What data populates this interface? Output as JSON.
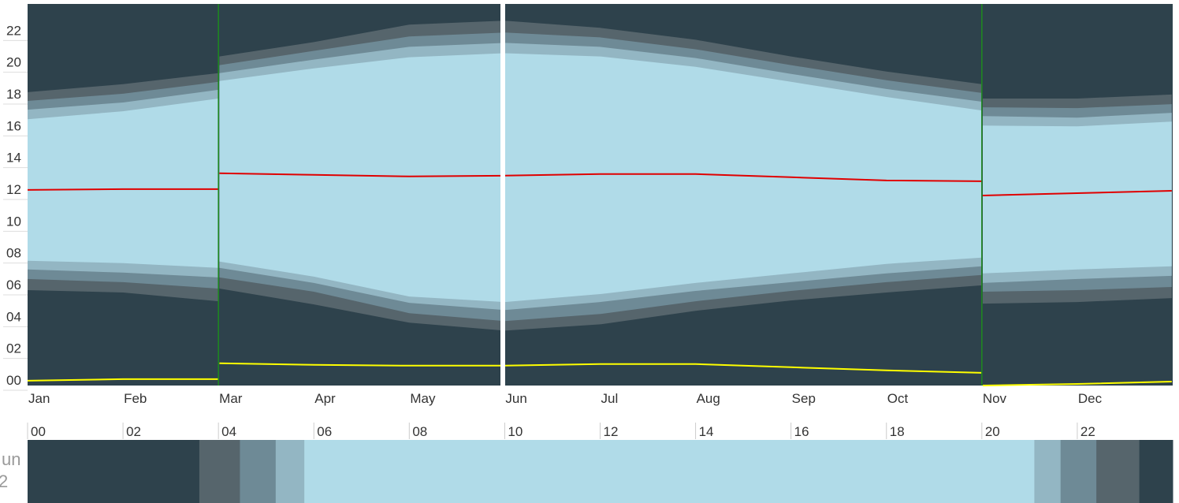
{
  "colors": {
    "night": "#2e424c",
    "astro": "#56656c",
    "nautical": "#6e8a96",
    "civil": "#93b6c3",
    "day": "#b0dbe8",
    "noon_line": "#e00000",
    "midnight_line": "#ffff00",
    "dst_line": "#1e8a1e",
    "axis_text": "#333333",
    "sidebar_text": "#9a9a9a",
    "gap": "#ffffff"
  },
  "chart_data": {
    "type": "area",
    "title": "",
    "xlabel": "",
    "ylabel": "",
    "ylim": [
      0,
      24
    ],
    "grid": false,
    "y_ticks": [
      "00",
      "02",
      "04",
      "06",
      "08",
      "10",
      "12",
      "14",
      "16",
      "18",
      "20",
      "22"
    ],
    "x_ticks": [
      {
        "label": "Jan",
        "month": 1
      },
      {
        "label": "Feb",
        "month": 2
      },
      {
        "label": "Mar",
        "month": 3
      },
      {
        "label": "Apr",
        "month": 4
      },
      {
        "label": "May",
        "month": 5
      },
      {
        "label": "Jun",
        "month": 6
      },
      {
        "label": "Jul",
        "month": 7
      },
      {
        "label": "Aug",
        "month": 8
      },
      {
        "label": "Sep",
        "month": 9
      },
      {
        "label": "Oct",
        "month": 10
      },
      {
        "label": "Nov",
        "month": 11
      },
      {
        "label": "Dec",
        "month": 12
      }
    ],
    "dst_transitions": [
      "Mar",
      "Nov"
    ],
    "selected_day": "Jun",
    "x_month": [
      1.0,
      2.0,
      3.0,
      3.01,
      4.0,
      5.0,
      6.0,
      7.0,
      8.0,
      9.0,
      10.0,
      11.0,
      11.01,
      12.0,
      12.99
    ],
    "series": [
      {
        "name": "astro_dawn",
        "values": [
          6.0,
          5.85,
          5.3,
          6.1,
          5.1,
          3.95,
          3.45,
          3.85,
          4.7,
          5.35,
          5.85,
          6.3,
          5.15,
          5.25,
          5.5
        ]
      },
      {
        "name": "nautical_dawn",
        "values": [
          6.7,
          6.5,
          6.1,
          6.8,
          5.9,
          4.55,
          4.05,
          4.5,
          5.3,
          5.95,
          6.5,
          6.95,
          5.9,
          6.0,
          6.2
        ]
      },
      {
        "name": "civil_dawn",
        "values": [
          7.3,
          7.1,
          6.8,
          7.4,
          6.45,
          5.2,
          4.75,
          5.25,
          5.95,
          6.5,
          7.05,
          7.5,
          6.45,
          6.7,
          6.9
        ]
      },
      {
        "name": "sunrise",
        "values": [
          7.85,
          7.7,
          7.4,
          7.8,
          6.85,
          5.6,
          5.25,
          5.75,
          6.45,
          7.05,
          7.65,
          8.05,
          7.05,
          7.3,
          7.5
        ]
      },
      {
        "name": "solar_noon",
        "values": [
          12.3,
          12.35,
          12.35,
          13.35,
          13.25,
          13.15,
          13.2,
          13.3,
          13.3,
          13.1,
          12.9,
          12.85,
          11.95,
          12.1,
          12.25
        ]
      },
      {
        "name": "sunset",
        "values": [
          16.75,
          17.25,
          18.05,
          19.15,
          19.95,
          20.65,
          20.9,
          20.7,
          20.05,
          19.1,
          18.15,
          17.3,
          16.35,
          16.3,
          16.6
        ]
      },
      {
        "name": "civil_dusk",
        "values": [
          17.35,
          17.8,
          18.6,
          19.65,
          20.5,
          21.3,
          21.55,
          21.3,
          20.6,
          19.6,
          18.65,
          17.85,
          16.95,
          16.85,
          17.15
        ]
      },
      {
        "name": "nautical_dusk",
        "values": [
          17.9,
          18.35,
          19.1,
          20.15,
          21.05,
          21.95,
          22.2,
          21.9,
          21.15,
          20.15,
          19.2,
          18.4,
          17.5,
          17.45,
          17.7
        ]
      },
      {
        "name": "astro_dusk",
        "values": [
          18.45,
          18.95,
          19.65,
          20.7,
          21.6,
          22.7,
          22.95,
          22.5,
          21.75,
          20.7,
          19.75,
          18.95,
          18.05,
          18.05,
          18.3
        ]
      },
      {
        "name": "solar_midnight",
        "values": [
          0.3,
          0.4,
          0.4,
          1.4,
          1.3,
          1.25,
          1.25,
          1.35,
          1.35,
          1.15,
          0.95,
          0.8,
          0.0,
          0.1,
          0.25
        ]
      }
    ]
  },
  "day_strip": {
    "tick_labels": [
      "00",
      "02",
      "04",
      "06",
      "08",
      "10",
      "12",
      "14",
      "16",
      "18",
      "20",
      "22"
    ],
    "bands": [
      {
        "from": 0.0,
        "to": 3.6,
        "color": "night"
      },
      {
        "from": 3.6,
        "to": 4.45,
        "color": "astro"
      },
      {
        "from": 4.45,
        "to": 5.2,
        "color": "nautical"
      },
      {
        "from": 5.2,
        "to": 5.8,
        "color": "civil"
      },
      {
        "from": 5.8,
        "to": 21.1,
        "color": "day"
      },
      {
        "from": 21.1,
        "to": 21.65,
        "color": "civil"
      },
      {
        "from": 21.65,
        "to": 22.4,
        "color": "nautical"
      },
      {
        "from": 22.4,
        "to": 23.3,
        "color": "astro"
      },
      {
        "from": 23.3,
        "to": 24.0,
        "color": "night"
      }
    ]
  },
  "sidebar": {
    "line1": "un",
    "line2": "2"
  }
}
